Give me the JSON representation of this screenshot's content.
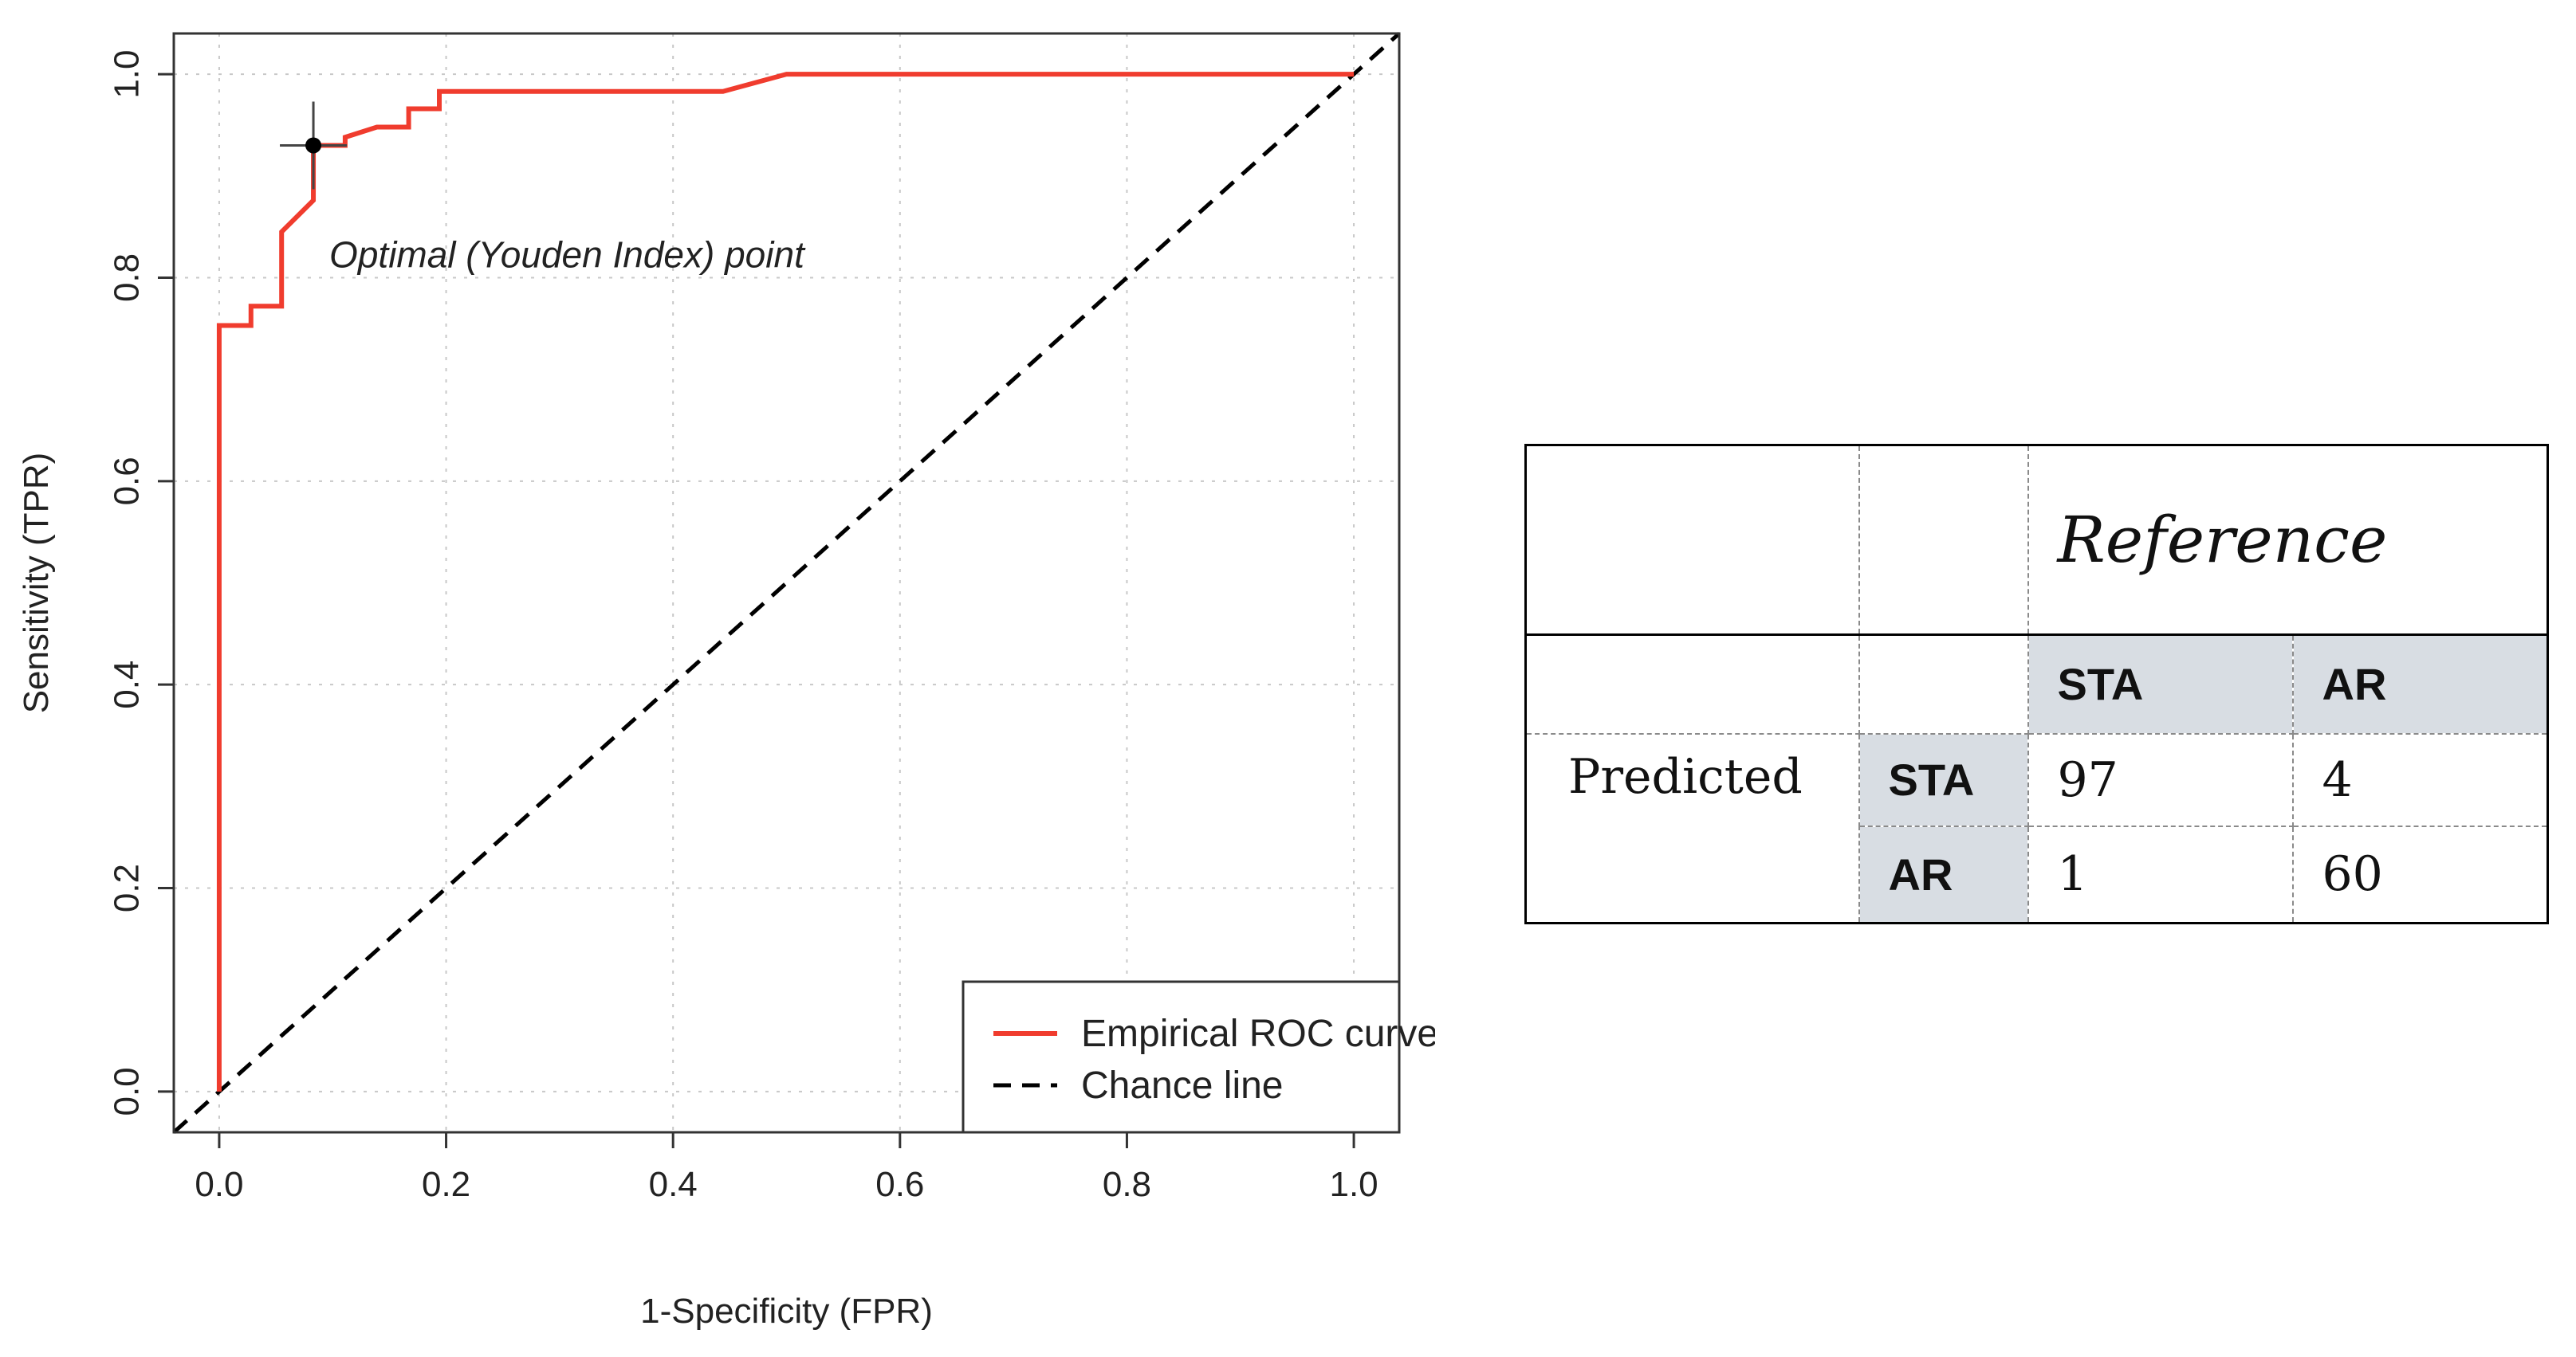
{
  "chart_data": {
    "type": "line",
    "xlabel": "1-Specificity (FPR)",
    "ylabel": "Sensitivity (TPR)",
    "xlim": [
      -0.04,
      1.04
    ],
    "ylim": [
      -0.04,
      1.04
    ],
    "xticks": [
      "0.0",
      "0.2",
      "0.4",
      "0.6",
      "0.8",
      "1.0"
    ],
    "yticks": [
      "0.0",
      "0.2",
      "0.4",
      "0.6",
      "0.8",
      "1.0"
    ],
    "grid": true,
    "legend_position": "bottom-right",
    "series": [
      {
        "name": "Empirical ROC curve",
        "color": "#f03c2e",
        "style": "solid",
        "x": [
          0,
          0,
          0.028,
          0.028,
          0.055,
          0.055,
          0.083,
          0.083,
          0.111,
          0.111,
          0.139,
          0.139,
          0.167,
          0.167,
          0.194,
          0.194,
          0.444,
          0.5,
          1.0
        ],
        "y": [
          0,
          0.753,
          0.753,
          0.772,
          0.772,
          0.845,
          0.876,
          0.93,
          0.93,
          0.938,
          0.948,
          0.948,
          0.948,
          0.966,
          0.966,
          0.983,
          0.983,
          1.0,
          1.0
        ]
      },
      {
        "name": "Chance line",
        "color": "#000000",
        "style": "dashed",
        "x": [
          -0.04,
          1.04
        ],
        "y": [
          -0.04,
          1.04
        ]
      }
    ],
    "optimal_point": {
      "x": 0.083,
      "y": 0.93,
      "label": "Optimal (Youden Index) point"
    }
  },
  "confusion_matrix": {
    "reference_label": "Reference",
    "predicted_label": "Predicted",
    "classes": [
      "STA",
      "AR"
    ],
    "rows": [
      {
        "label": "STA",
        "values": [
          "97",
          "4"
        ]
      },
      {
        "label": "AR",
        "values": [
          "1",
          "60"
        ]
      }
    ]
  }
}
